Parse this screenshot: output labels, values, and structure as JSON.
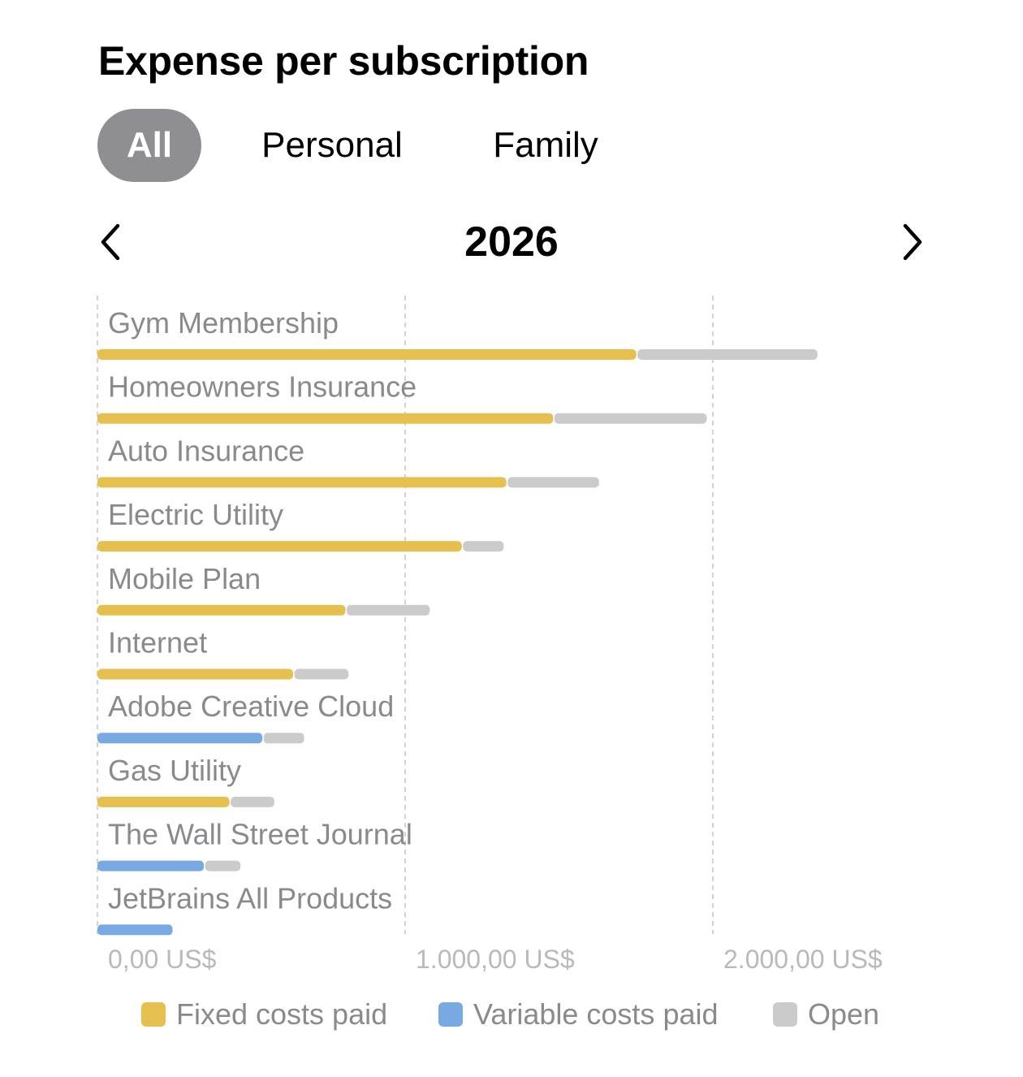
{
  "title": "Expense per subscription",
  "tabs": [
    {
      "label": "All",
      "selected": true
    },
    {
      "label": "Personal",
      "selected": false
    },
    {
      "label": "Family",
      "selected": false
    }
  ],
  "period": {
    "year": "2026",
    "prev_icon": "chevron-left-icon",
    "next_icon": "chevron-right-icon"
  },
  "colors": {
    "fixed": "#e6c04e",
    "variable": "#78a9e2",
    "open": "#cbcbcb",
    "grid": "#c8c8c8",
    "label": "#8a8a8e",
    "axis_label": "#b9b9bd"
  },
  "legend": [
    {
      "label": "Fixed costs paid",
      "color": "#e6c04e"
    },
    {
      "label": "Variable costs paid",
      "color": "#78a9e2"
    },
    {
      "label": "Open",
      "color": "#cbcbcb"
    }
  ],
  "chart_data": {
    "type": "bar",
    "orientation": "horizontal",
    "stacked": true,
    "xlim": [
      0,
      2000
    ],
    "x_ticks": [
      0,
      1000,
      2000
    ],
    "x_tick_labels": [
      "0,00 US$",
      "1.000,00 US$",
      "2.000,00 US$"
    ],
    "grid": true,
    "legend_position": "bottom",
    "categories": [
      "Gym Membership",
      "Homeowners Insurance",
      "Auto Insurance",
      "Electric Utility",
      "Mobile Plan",
      "Internet",
      "Adobe Creative Cloud",
      "Gas Utility",
      "The Wall Street Journal",
      "JetBrains All Products"
    ],
    "series": [
      {
        "name": "Fixed costs paid",
        "color": "#e6c04e",
        "values": [
          1755,
          1485,
          1333,
          1188,
          810,
          640,
          0,
          433,
          0,
          0
        ]
      },
      {
        "name": "Variable costs paid",
        "color": "#78a9e2",
        "values": [
          0,
          0,
          0,
          0,
          0,
          0,
          540,
          0,
          350,
          248
        ]
      },
      {
        "name": "Open",
        "color": "#cbcbcb",
        "values": [
          585,
          495,
          297,
          132,
          270,
          176,
          132,
          142,
          115,
          0
        ]
      }
    ]
  }
}
